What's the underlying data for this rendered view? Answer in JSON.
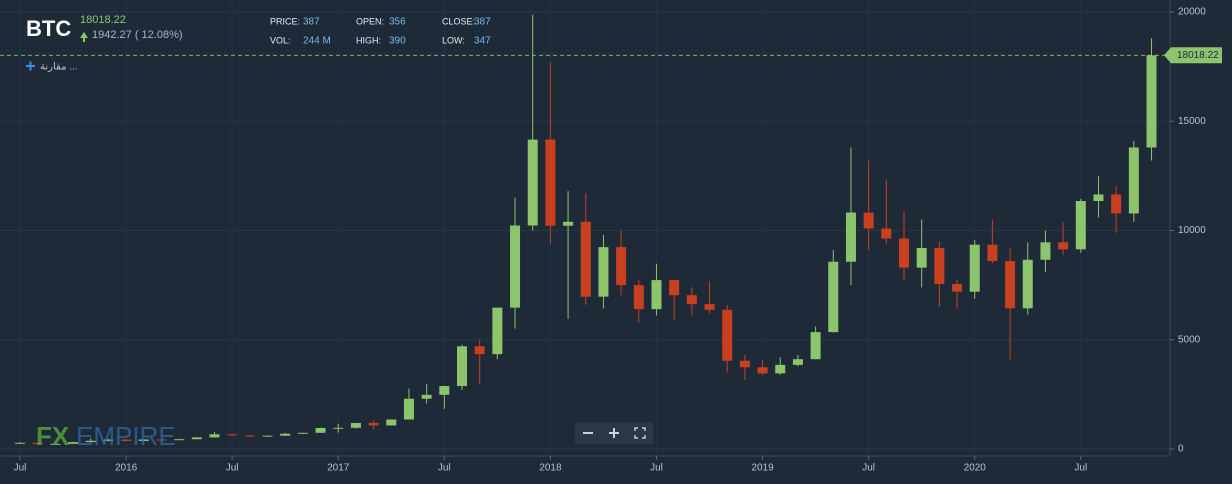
{
  "chart_data": {
    "type": "candlestick",
    "symbol": "BTC",
    "last_price": 18018.22,
    "change_label": "1942.27 ( 12.08%)",
    "info": [
      {
        "label": "PRICE:",
        "value": "387"
      },
      {
        "label": "OPEN:",
        "value": "356"
      },
      {
        "label": "CLOSE:",
        "value": "387"
      },
      {
        "label": "VOL:",
        "value": "244 M"
      },
      {
        "label": "HIGH:",
        "value": "390"
      },
      {
        "label": "LOW:",
        "value": "347"
      }
    ],
    "compare_label": "مقارنة ...",
    "watermark": [
      "FX",
      "EMPIRE"
    ],
    "up_color": "#8dc56c",
    "down_color": "#c8401f",
    "x": [
      "2015-07",
      "2015-08",
      "2015-09",
      "2015-10",
      "2015-11",
      "2015-12",
      "2016-01",
      "2016-02",
      "2016-03",
      "2016-04",
      "2016-05",
      "2016-06",
      "2016-07",
      "2016-08",
      "2016-09",
      "2016-10",
      "2016-11",
      "2016-12",
      "2017-01",
      "2017-02",
      "2017-03",
      "2017-04",
      "2017-05",
      "2017-06",
      "2017-07",
      "2017-08",
      "2017-09",
      "2017-10",
      "2017-11",
      "2017-12",
      "2018-01",
      "2018-02",
      "2018-03",
      "2018-04",
      "2018-05",
      "2018-06",
      "2018-07",
      "2018-08",
      "2018-09",
      "2018-10",
      "2018-11",
      "2018-12",
      "2019-01",
      "2019-02",
      "2019-03",
      "2019-04",
      "2019-05",
      "2019-06",
      "2019-07",
      "2019-08",
      "2019-09",
      "2019-10",
      "2019-11",
      "2019-12",
      "2020-01",
      "2020-02",
      "2020-03",
      "2020-04",
      "2020-05",
      "2020-06",
      "2020-07",
      "2020-08",
      "2020-09",
      "2020-10",
      "2020-11"
    ],
    "open": [
      263,
      284,
      230,
      236,
      314,
      377,
      430,
      368,
      437,
      416,
      448,
      531,
      673,
      624,
      575,
      609,
      700,
      742,
      963,
      970,
      1190,
      1080,
      1350,
      2300,
      2480,
      2880,
      4700,
      4340,
      6470,
      10230,
      14160,
      10220,
      10400,
      6970,
      9240,
      7500,
      6400,
      7730,
      7040,
      6630,
      6370,
      4040,
      3740,
      3460,
      3850,
      4110,
      5350,
      8570,
      10820,
      10090,
      9630,
      8300,
      9200,
      7550,
      7200,
      9350,
      8600,
      6440,
      8660,
      9460,
      9140,
      11350,
      11650,
      10780,
      13800
    ],
    "high": [
      315,
      286,
      244,
      330,
      495,
      465,
      460,
      440,
      440,
      465,
      540,
      780,
      705,
      625,
      630,
      740,
      750,
      975,
      1150,
      1200,
      1290,
      1350,
      2760,
      2980,
      2900,
      4770,
      4980,
      6470,
      11500,
      19870,
      17700,
      11800,
      11700,
      9800,
      10000,
      7760,
      8480,
      7760,
      7400,
      7680,
      6600,
      4310,
      4070,
      4200,
      4300,
      5600,
      9100,
      13800,
      13200,
      12300,
      10900,
      10500,
      9500,
      7750,
      9560,
      10500,
      9200,
      9460,
      10000,
      10380,
      11450,
      12480,
      12050,
      14100,
      18800
    ],
    "low": [
      255,
      200,
      225,
      236,
      300,
      350,
      350,
      365,
      400,
      415,
      440,
      530,
      610,
      535,
      570,
      605,
      690,
      740,
      750,
      930,
      890,
      1070,
      1350,
      2080,
      1840,
      2700,
      2970,
      4110,
      5510,
      10000,
      9400,
      5950,
      6600,
      6430,
      7040,
      5780,
      6110,
      5880,
      6100,
      6200,
      3500,
      3160,
      3400,
      3400,
      3780,
      4100,
      5330,
      7500,
      9100,
      9400,
      7700,
      7400,
      6500,
      6430,
      6870,
      8500,
      4100,
      6150,
      8100,
      8900,
      8980,
      10600,
      9900,
      10400,
      13200
    ],
    "close": [
      284,
      230,
      236,
      314,
      377,
      430,
      368,
      437,
      416,
      448,
      531,
      673,
      624,
      575,
      609,
      700,
      742,
      963,
      970,
      1190,
      1080,
      1350,
      2300,
      2480,
      2880,
      4700,
      4340,
      6470,
      10230,
      14160,
      10220,
      10400,
      6970,
      9240,
      7500,
      6400,
      7730,
      7040,
      6630,
      6370,
      4040,
      3740,
      3460,
      3850,
      4110,
      5350,
      8570,
      10820,
      10090,
      9630,
      8300,
      9200,
      7550,
      7200,
      9350,
      8600,
      6440,
      8660,
      9460,
      9140,
      11350,
      11650,
      10780,
      13800,
      18018.22
    ],
    "ylim": [
      0,
      20000
    ],
    "yticks": [
      0,
      5000,
      10000,
      15000,
      20000
    ],
    "xticks": [
      {
        "value": "2015-07",
        "label": "Jul"
      },
      {
        "value": "2016-01",
        "label": "2016"
      },
      {
        "value": "2016-07",
        "label": "Jul"
      },
      {
        "value": "2017-01",
        "label": "2017"
      },
      {
        "value": "2017-07",
        "label": "Jul"
      },
      {
        "value": "2018-01",
        "label": "2018"
      },
      {
        "value": "2018-07",
        "label": "Jul"
      },
      {
        "value": "2019-01",
        "label": "2019"
      },
      {
        "value": "2019-07",
        "label": "Jul"
      },
      {
        "value": "2020-01",
        "label": "2020"
      },
      {
        "value": "2020-07",
        "label": "Jul"
      }
    ],
    "grid": true
  }
}
